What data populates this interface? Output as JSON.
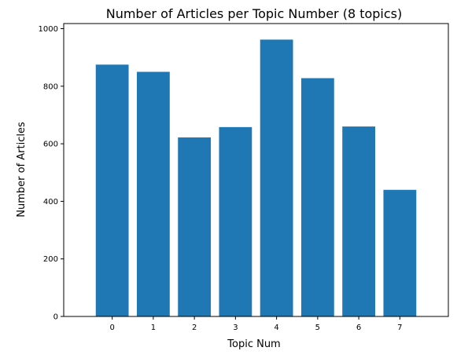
{
  "chart_data": {
    "type": "bar",
    "title": "Number of Articles per Topic Number (8 topics)",
    "xlabel": "Topic Num",
    "ylabel": "Number of Articles",
    "categories": [
      "0",
      "1",
      "2",
      "3",
      "4",
      "5",
      "6",
      "7"
    ],
    "values": [
      875,
      850,
      622,
      658,
      962,
      828,
      660,
      440
    ],
    "ylim": [
      0,
      1000
    ],
    "yticks": [
      0,
      200,
      400,
      600,
      800,
      1000
    ],
    "grid": false,
    "legend": "none",
    "bar_color": "#1f77b4"
  }
}
